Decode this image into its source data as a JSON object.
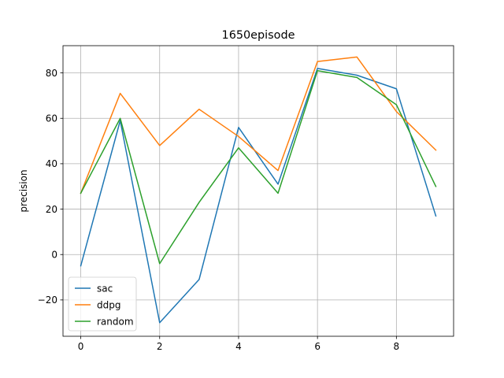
{
  "chart_data": {
    "type": "line",
    "title": "1650episode",
    "xlabel": "",
    "ylabel": "precision",
    "x": [
      0,
      1,
      2,
      3,
      4,
      5,
      6,
      7,
      8,
      9
    ],
    "xlim": [
      -0.45,
      9.45
    ],
    "ylim": [
      -36,
      92
    ],
    "xticks": [
      0,
      2,
      4,
      6,
      8
    ],
    "yticks": [
      -20,
      0,
      20,
      40,
      60,
      80
    ],
    "ytick_labels": [
      "−20",
      "0",
      "20",
      "40",
      "60",
      "80"
    ],
    "grid": true,
    "legend": "lower-left",
    "series": [
      {
        "name": "sac",
        "color": "#1f77b4",
        "values": [
          -5,
          59,
          -30,
          -11,
          56,
          31,
          82,
          79,
          73,
          17
        ]
      },
      {
        "name": "ddpg",
        "color": "#ff7f0e",
        "values": [
          27,
          71,
          48,
          64,
          52,
          37,
          85,
          87,
          63,
          46
        ]
      },
      {
        "name": "random",
        "color": "#2ca02c",
        "values": [
          27,
          60,
          -4,
          23,
          47,
          27,
          81,
          78,
          66,
          30
        ]
      }
    ]
  }
}
